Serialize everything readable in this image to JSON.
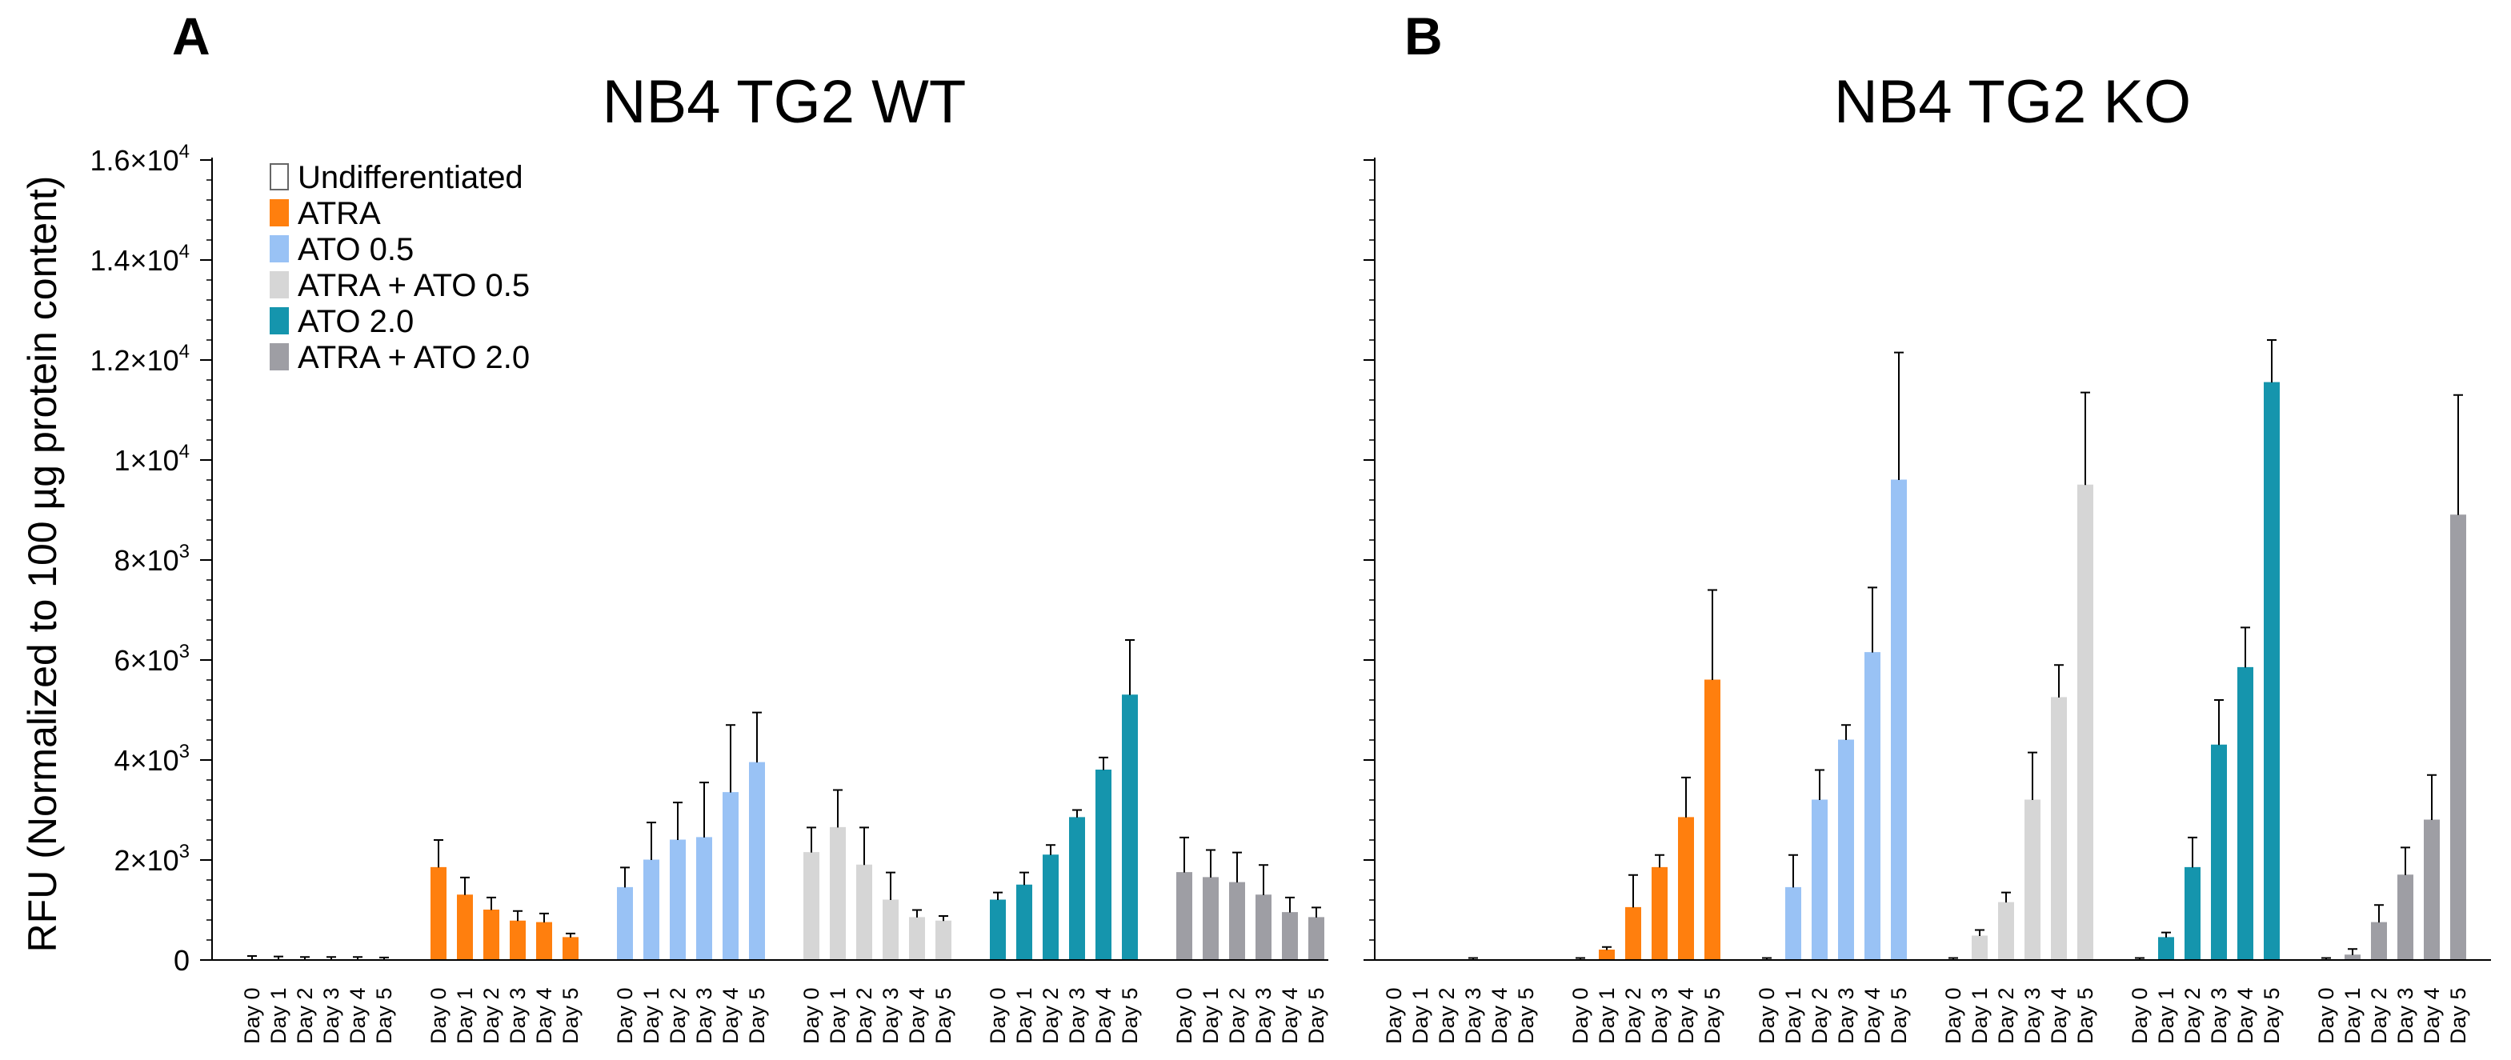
{
  "chart_data": {
    "type": "bar",
    "ylabel": "RFU (Normalized to 100 µg protein content)",
    "ylim": [
      0,
      16000
    ],
    "y_ticks": [
      {
        "value": 0,
        "mantissa": "0",
        "exponent": ""
      },
      {
        "value": 2000,
        "mantissa": "2×10",
        "exponent": "3"
      },
      {
        "value": 4000,
        "mantissa": "4×10",
        "exponent": "3"
      },
      {
        "value": 6000,
        "mantissa": "6×10",
        "exponent": "3"
      },
      {
        "value": 8000,
        "mantissa": "8×10",
        "exponent": "3"
      },
      {
        "value": 10000,
        "mantissa": "1×10",
        "exponent": "4"
      },
      {
        "value": 12000,
        "mantissa": "1.2×10",
        "exponent": "4"
      },
      {
        "value": 14000,
        "mantissa": "1.4×10",
        "exponent": "4"
      },
      {
        "value": 16000,
        "mantissa": "1.6×10",
        "exponent": "4"
      }
    ],
    "categories": [
      "Day 0",
      "Day 1",
      "Day 2",
      "Day 3",
      "Day 4",
      "Day 5"
    ],
    "legend": [
      {
        "name": "Undifferentiated",
        "color": "#ffffff",
        "stroke": "#666666"
      },
      {
        "name": "ATRA",
        "color": "#ff7f0e",
        "stroke": "#ff7f0e"
      },
      {
        "name": "ATO 0.5",
        "color": "#99c2f5",
        "stroke": "#99c2f5"
      },
      {
        "name": "ATRA + ATO 0.5",
        "color": "#d6d6d6",
        "stroke": "#d6d6d6"
      },
      {
        "name": "ATO 2.0",
        "color": "#1595ad",
        "stroke": "#1595ad"
      },
      {
        "name": "ATRA + ATO 2.0",
        "color": "#9e9ea4",
        "stroke": "#9e9ea4"
      }
    ],
    "panels": [
      {
        "letter": "A",
        "title": "NB4 TG2 WT",
        "groups": [
          {
            "name": "Undifferentiated",
            "values": [
              0,
              0,
              0,
              0,
              0,
              0
            ],
            "errors": [
              80,
              70,
              60,
              60,
              60,
              50
            ]
          },
          {
            "name": "ATRA",
            "values": [
              1850,
              1300,
              1000,
              780,
              750,
              450
            ],
            "errors": [
              550,
              350,
              250,
              200,
              180,
              80
            ]
          },
          {
            "name": "ATO 0.5",
            "values": [
              1450,
              2000,
              2400,
              2450,
              3350,
              3950
            ],
            "errors": [
              400,
              750,
              750,
              1100,
              1350,
              1000
            ]
          },
          {
            "name": "ATRA + ATO 0.5",
            "values": [
              2150,
              2650,
              1900,
              1200,
              850,
              780
            ],
            "errors": [
              500,
              750,
              750,
              550,
              150,
              100
            ]
          },
          {
            "name": "ATO 2.0",
            "values": [
              1200,
              1500,
              2100,
              2850,
              3800,
              5300
            ],
            "errors": [
              150,
              250,
              200,
              150,
              250,
              1100
            ]
          },
          {
            "name": "ATRA + ATO 2.0",
            "values": [
              1750,
              1650,
              1550,
              1300,
              950,
              850
            ],
            "errors": [
              700,
              550,
              600,
              600,
              300,
              200
            ]
          }
        ]
      },
      {
        "letter": "B",
        "title": "NB4 TG2 KO",
        "groups": [
          {
            "name": "Undifferentiated",
            "values": [
              0,
              0,
              0,
              0,
              0,
              0
            ],
            "errors": [
              0,
              0,
              0,
              40,
              0,
              0
            ]
          },
          {
            "name": "ATRA",
            "values": [
              0,
              200,
              1050,
              1850,
              2850,
              5600
            ],
            "errors": [
              40,
              60,
              650,
              250,
              800,
              1800
            ]
          },
          {
            "name": "ATO 0.5",
            "values": [
              0,
              1450,
              3200,
              4400,
              6150,
              9600
            ],
            "errors": [
              40,
              650,
              600,
              300,
              1300,
              2550
            ]
          },
          {
            "name": "ATRA + ATO 0.5",
            "values": [
              0,
              480,
              1150,
              3200,
              5250,
              9500
            ],
            "errors": [
              40,
              120,
              200,
              950,
              650,
              1850
            ]
          },
          {
            "name": "ATO 2.0",
            "values": [
              0,
              450,
              1850,
              4300,
              5850,
              11550
            ],
            "errors": [
              40,
              100,
              600,
              900,
              800,
              850
            ]
          },
          {
            "name": "ATRA + ATO 2.0",
            "values": [
              0,
              100,
              750,
              1700,
              2800,
              8900
            ],
            "errors": [
              40,
              120,
              350,
              550,
              900,
              2400
            ]
          }
        ]
      }
    ]
  }
}
